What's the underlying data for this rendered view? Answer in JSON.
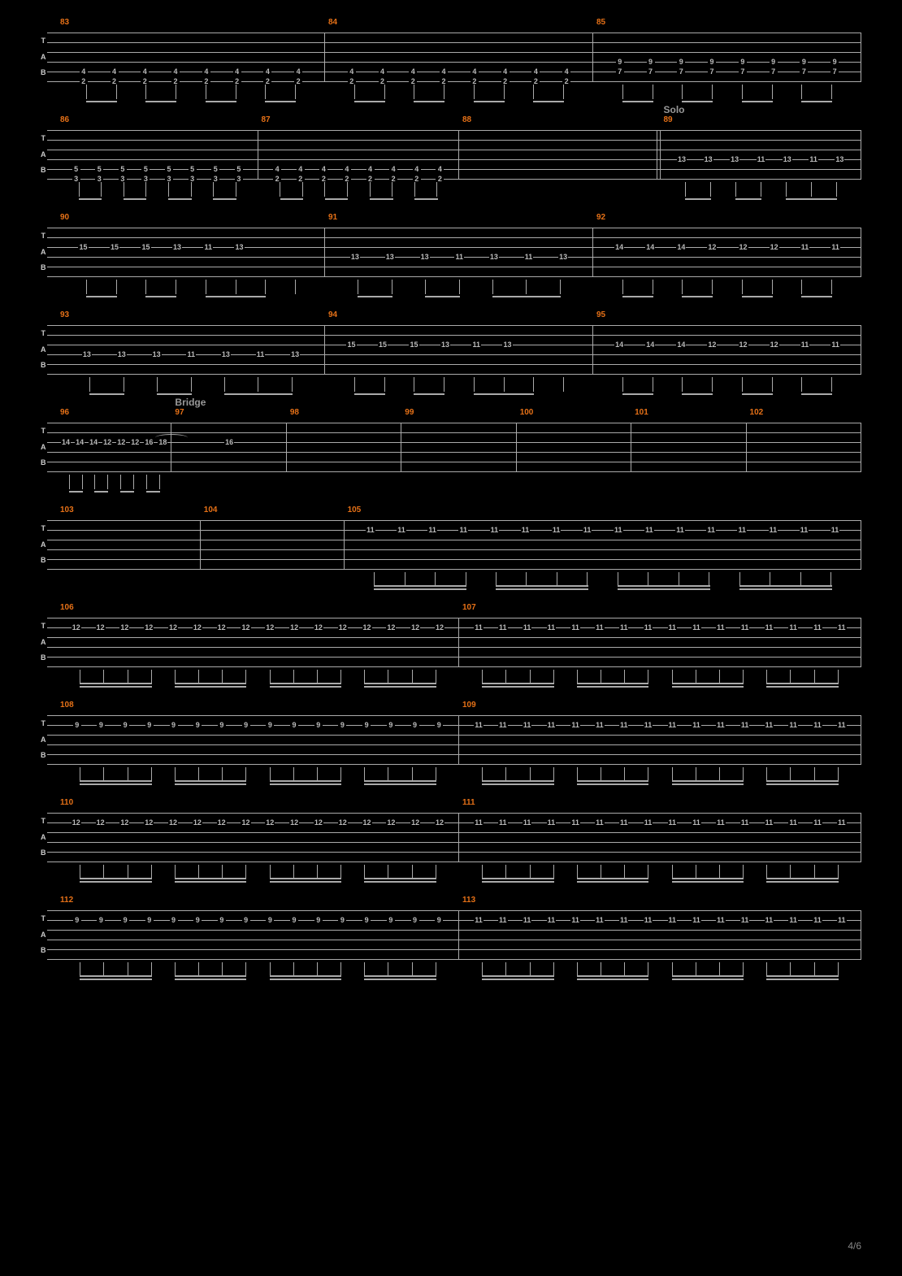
{
  "page_number": "4/6",
  "colors": {
    "background": "#000000",
    "line": "#aaaaaa",
    "measure_num": "#e67117",
    "fret": "#bbbbbb",
    "section_label": "#999999",
    "tab_label": "#cccccc",
    "page_num": "#888888"
  },
  "tab_labels": [
    "T",
    "A",
    "B"
  ],
  "string_positions": [
    0,
    12,
    24,
    36,
    48,
    60
  ],
  "systems": [
    {
      "measures": [
        {
          "num": "83",
          "notes": [
            {
              "string": 4,
              "frets": [
                "4",
                "4",
                "4",
                "4",
                "4",
                "4",
                "4",
                "4"
              ]
            },
            {
              "string": 5,
              "frets": [
                "2",
                "2",
                "2",
                "2",
                "2",
                "2",
                "2",
                "2"
              ]
            }
          ],
          "beaming": "eighth-pairs"
        },
        {
          "num": "84",
          "notes": [
            {
              "string": 4,
              "frets": [
                "4",
                "4",
                "4",
                "4",
                "4",
                "4",
                "4",
                "4"
              ]
            },
            {
              "string": 5,
              "frets": [
                "2",
                "2",
                "2",
                "2",
                "2",
                "2",
                "2",
                "2"
              ]
            }
          ],
          "beaming": "eighth-pairs"
        },
        {
          "num": "85",
          "notes": [
            {
              "string": 3,
              "frets": [
                "9",
                "9",
                "9",
                "9",
                "9",
                "9",
                "9",
                "9"
              ]
            },
            {
              "string": 4,
              "frets": [
                "7",
                "7",
                "7",
                "7",
                "7",
                "7",
                "7",
                "7"
              ]
            }
          ],
          "beaming": "eighth-pairs"
        }
      ]
    },
    {
      "measures": [
        {
          "num": "86",
          "notes": [
            {
              "string": 4,
              "frets": [
                "5",
                "5",
                "5",
                "5",
                "5",
                "5",
                "5",
                "5"
              ]
            },
            {
              "string": 5,
              "frets": [
                "3",
                "3",
                "3",
                "3",
                "3",
                "3",
                "3",
                "3"
              ]
            }
          ],
          "beaming": "eighth-pairs"
        },
        {
          "num": "87",
          "notes": [
            {
              "string": 4,
              "frets": [
                "4",
                "4",
                "4",
                "4",
                "4",
                "4",
                "4",
                "4"
              ]
            },
            {
              "string": 5,
              "frets": [
                "2",
                "2",
                "2",
                "2",
                "2",
                "2",
                "2",
                "2"
              ]
            }
          ],
          "beaming": "eighth-pairs"
        },
        {
          "num": "88",
          "notes": [],
          "double_bar": true
        },
        {
          "num": "89",
          "section": "Solo",
          "notes": [
            {
              "string": 3,
              "frets": [
                "13",
                "13",
                "13",
                "11",
                "13",
                "11",
                "13"
              ]
            }
          ],
          "beaming": "mixed-1"
        }
      ]
    },
    {
      "measures": [
        {
          "num": "90",
          "notes": [
            {
              "string": 2,
              "frets": [
                "15",
                "15",
                "15",
                "13",
                "11",
                "13",
                "",
                ""
              ]
            },
            {
              "string": 3,
              "frets": [
                "",
                "",
                "",
                "",
                "",
                "",
                "",
                ""
              ]
            }
          ],
          "beaming": "mixed-1"
        },
        {
          "num": "91",
          "notes": [
            {
              "string": 3,
              "frets": [
                "13",
                "13",
                "13",
                "11",
                "13",
                "11",
                "13"
              ]
            }
          ],
          "beaming": "mixed-1"
        },
        {
          "num": "92",
          "notes": [
            {
              "string": 2,
              "frets": [
                "14",
                "14",
                "14",
                "12",
                "12",
                "12",
                "11",
                "11"
              ]
            }
          ],
          "beaming": "eighth-pairs"
        }
      ]
    },
    {
      "measures": [
        {
          "num": "93",
          "notes": [
            {
              "string": 3,
              "frets": [
                "13",
                "13",
                "13",
                "11",
                "13",
                "11",
                "13"
              ]
            }
          ],
          "beaming": "mixed-1"
        },
        {
          "num": "94",
          "notes": [
            {
              "string": 2,
              "frets": [
                "15",
                "15",
                "15",
                "13",
                "11",
                "13",
                "",
                ""
              ]
            }
          ],
          "beaming": "mixed-1"
        },
        {
          "num": "95",
          "notes": [
            {
              "string": 2,
              "frets": [
                "14",
                "14",
                "14",
                "12",
                "12",
                "12",
                "11",
                "11"
              ]
            }
          ],
          "beaming": "eighth-pairs"
        }
      ]
    },
    {
      "measures": [
        {
          "num": "96",
          "notes": [
            {
              "string": 2,
              "frets": [
                "14",
                "14",
                "14",
                "12",
                "12",
                "12",
                "16",
                "18"
              ]
            }
          ],
          "beaming": "eighth-pairs",
          "tie_to_next": true
        },
        {
          "num": "97",
          "section": "Bridge",
          "notes": [
            {
              "string": 2,
              "frets": [
                "16"
              ]
            }
          ],
          "beaming": "whole"
        },
        {
          "num": "98",
          "notes": []
        },
        {
          "num": "99",
          "notes": []
        },
        {
          "num": "100",
          "notes": []
        },
        {
          "num": "101",
          "notes": []
        },
        {
          "num": "102",
          "notes": []
        }
      ]
    },
    {
      "measures": [
        {
          "num": "103",
          "notes": []
        },
        {
          "num": "104",
          "notes": []
        },
        {
          "num": "105",
          "flex": 3.6,
          "notes": [
            {
              "string": 1,
              "frets": [
                "11",
                "11",
                "11",
                "11",
                "11",
                "11",
                "11",
                "11",
                "11",
                "11",
                "11",
                "11",
                "11",
                "11",
                "11",
                "11"
              ]
            }
          ],
          "beaming": "sixteenth-groups"
        }
      ]
    },
    {
      "measures": [
        {
          "num": "106",
          "notes": [
            {
              "string": 1,
              "frets": [
                "12",
                "12",
                "12",
                "12",
                "12",
                "12",
                "12",
                "12",
                "12",
                "12",
                "12",
                "12",
                "12",
                "12",
                "12",
                "12"
              ]
            }
          ],
          "beaming": "sixteenth-groups"
        },
        {
          "num": "107",
          "notes": [
            {
              "string": 1,
              "frets": [
                "11",
                "11",
                "11",
                "11",
                "11",
                "11",
                "11",
                "11",
                "11",
                "11",
                "11",
                "11",
                "11",
                "11",
                "11",
                "11"
              ]
            }
          ],
          "beaming": "sixteenth-groups"
        }
      ]
    },
    {
      "measures": [
        {
          "num": "108",
          "notes": [
            {
              "string": 1,
              "frets": [
                "9",
                "9",
                "9",
                "9",
                "9",
                "9",
                "9",
                "9",
                "9",
                "9",
                "9",
                "9",
                "9",
                "9",
                "9",
                "9"
              ]
            }
          ],
          "beaming": "sixteenth-groups"
        },
        {
          "num": "109",
          "notes": [
            {
              "string": 1,
              "frets": [
                "11",
                "11",
                "11",
                "11",
                "11",
                "11",
                "11",
                "11",
                "11",
                "11",
                "11",
                "11",
                "11",
                "11",
                "11",
                "11"
              ]
            }
          ],
          "beaming": "sixteenth-groups"
        }
      ]
    },
    {
      "measures": [
        {
          "num": "110",
          "notes": [
            {
              "string": 1,
              "frets": [
                "12",
                "12",
                "12",
                "12",
                "12",
                "12",
                "12",
                "12",
                "12",
                "12",
                "12",
                "12",
                "12",
                "12",
                "12",
                "12"
              ]
            }
          ],
          "beaming": "sixteenth-groups"
        },
        {
          "num": "111",
          "notes": [
            {
              "string": 1,
              "frets": [
                "11",
                "11",
                "11",
                "11",
                "11",
                "11",
                "11",
                "11",
                "11",
                "11",
                "11",
                "11",
                "11",
                "11",
                "11",
                "11"
              ]
            }
          ],
          "beaming": "sixteenth-groups"
        }
      ]
    },
    {
      "measures": [
        {
          "num": "112",
          "notes": [
            {
              "string": 1,
              "frets": [
                "9",
                "9",
                "9",
                "9",
                "9",
                "9",
                "9",
                "9",
                "9",
                "9",
                "9",
                "9",
                "9",
                "9",
                "9",
                "9"
              ]
            }
          ],
          "beaming": "sixteenth-groups"
        },
        {
          "num": "113",
          "notes": [
            {
              "string": 1,
              "frets": [
                "11",
                "11",
                "11",
                "11",
                "11",
                "11",
                "11",
                "11",
                "11",
                "11",
                "11",
                "11",
                "11",
                "11",
                "11",
                "11"
              ]
            }
          ],
          "beaming": "sixteenth-groups"
        }
      ]
    }
  ]
}
